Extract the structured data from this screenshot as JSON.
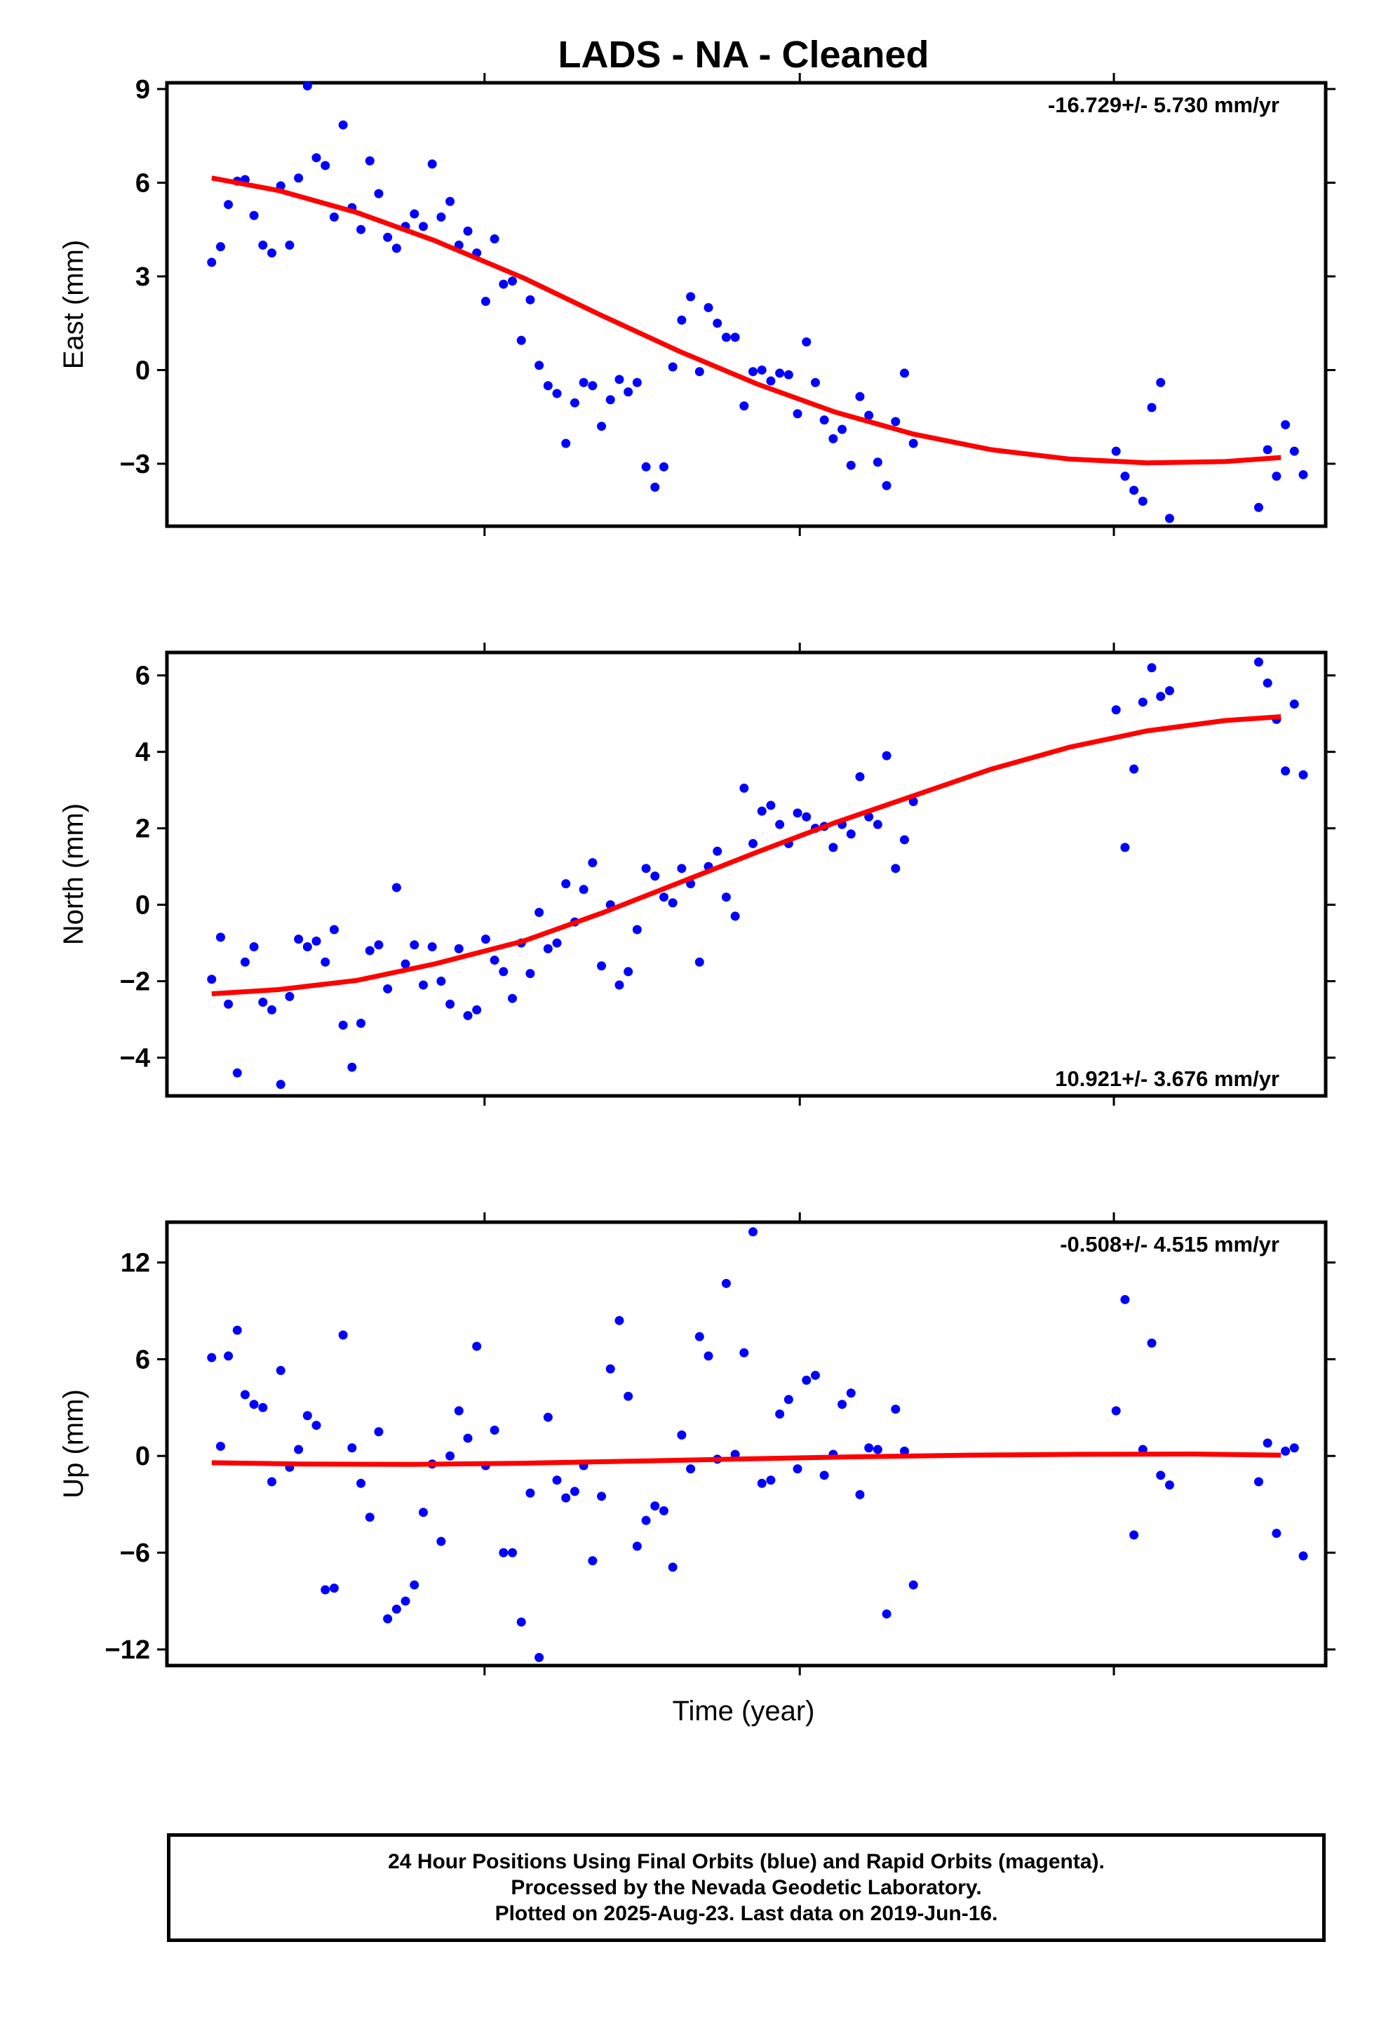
{
  "title": "LADS  - NA - Cleaned",
  "xlabel": "Time (year)",
  "colors": {
    "points": "#0000ff",
    "fit": "#ff0000",
    "frame": "#000000"
  },
  "footer": {
    "line1": "24 Hour Positions Using Final Orbits (blue) and Rapid Orbits (magenta).",
    "line2": "Processed by the Nevada Geodetic Laboratory.",
    "line3": "Plotted on 2025-Aug-23. Last data on 2019-Jun-16."
  },
  "chart_data": [
    {
      "type": "scatter",
      "id": "east",
      "ylabel": "East (mm)",
      "rate": "-16.729+/- 5.730 mm/yr",
      "rate_position": "top-right",
      "ylim": [
        -5.0,
        9.2
      ],
      "yticks": [
        9,
        6,
        3,
        0,
        -3
      ],
      "ytick_labels": [
        "9",
        "6",
        "3",
        "0",
        "−3"
      ],
      "xlim": [
        0,
        1
      ],
      "xticks": [
        0.265,
        0.548,
        0.83
      ],
      "fit": [
        [
          0.02,
          6.15
        ],
        [
          0.08,
          5.75
        ],
        [
          0.15,
          5.05
        ],
        [
          0.22,
          4.15
        ],
        [
          0.3,
          2.95
        ],
        [
          0.37,
          1.75
        ],
        [
          0.44,
          0.6
        ],
        [
          0.51,
          -0.45
        ],
        [
          0.58,
          -1.35
        ],
        [
          0.65,
          -2.05
        ],
        [
          0.72,
          -2.55
        ],
        [
          0.79,
          -2.85
        ],
        [
          0.86,
          -2.97
        ],
        [
          0.93,
          -2.93
        ],
        [
          0.98,
          -2.8
        ]
      ],
      "points": [
        [
          0.02,
          3.45
        ],
        [
          0.028,
          3.95
        ],
        [
          0.035,
          5.3
        ],
        [
          0.043,
          6.05
        ],
        [
          0.05,
          6.1
        ],
        [
          0.058,
          4.95
        ],
        [
          0.066,
          4.0
        ],
        [
          0.074,
          3.75
        ],
        [
          0.082,
          5.9
        ],
        [
          0.09,
          4.0
        ],
        [
          0.098,
          6.15
        ],
        [
          0.106,
          9.1
        ],
        [
          0.114,
          6.8
        ],
        [
          0.122,
          6.55
        ],
        [
          0.13,
          4.9
        ],
        [
          0.138,
          7.85
        ],
        [
          0.146,
          5.2
        ],
        [
          0.154,
          4.5
        ],
        [
          0.162,
          6.7
        ],
        [
          0.17,
          5.65
        ],
        [
          0.178,
          4.25
        ],
        [
          0.186,
          3.9
        ],
        [
          0.194,
          4.6
        ],
        [
          0.202,
          5.0
        ],
        [
          0.21,
          4.6
        ],
        [
          0.218,
          6.6
        ],
        [
          0.226,
          4.9
        ],
        [
          0.234,
          5.4
        ],
        [
          0.242,
          4.0
        ],
        [
          0.25,
          4.45
        ],
        [
          0.258,
          3.75
        ],
        [
          0.266,
          2.2
        ],
        [
          0.274,
          4.2
        ],
        [
          0.282,
          2.75
        ],
        [
          0.29,
          2.85
        ],
        [
          0.298,
          0.95
        ],
        [
          0.306,
          2.25
        ],
        [
          0.314,
          0.15
        ],
        [
          0.322,
          -0.5
        ],
        [
          0.33,
          -0.75
        ],
        [
          0.338,
          -2.35
        ],
        [
          0.346,
          -1.05
        ],
        [
          0.354,
          -0.4
        ],
        [
          0.362,
          -0.5
        ],
        [
          0.37,
          -1.8
        ],
        [
          0.378,
          -0.95
        ],
        [
          0.386,
          -0.3
        ],
        [
          0.394,
          -0.7
        ],
        [
          0.402,
          -0.4
        ],
        [
          0.41,
          -3.1
        ],
        [
          0.418,
          -3.75
        ],
        [
          0.426,
          -3.1
        ],
        [
          0.434,
          0.1
        ],
        [
          0.442,
          1.6
        ],
        [
          0.45,
          2.35
        ],
        [
          0.458,
          -0.05
        ],
        [
          0.466,
          2.0
        ],
        [
          0.474,
          1.5
        ],
        [
          0.482,
          1.05
        ],
        [
          0.49,
          1.05
        ],
        [
          0.498,
          -1.15
        ],
        [
          0.506,
          -0.05
        ],
        [
          0.514,
          0.0
        ],
        [
          0.522,
          -0.35
        ],
        [
          0.53,
          -0.1
        ],
        [
          0.538,
          -0.15
        ],
        [
          0.546,
          -1.4
        ],
        [
          0.554,
          0.9
        ],
        [
          0.562,
          -0.4
        ],
        [
          0.57,
          -1.6
        ],
        [
          0.578,
          -2.2
        ],
        [
          0.586,
          -1.9
        ],
        [
          0.594,
          -3.05
        ],
        [
          0.602,
          -0.85
        ],
        [
          0.61,
          -1.45
        ],
        [
          0.618,
          -2.95
        ],
        [
          0.626,
          -3.7
        ],
        [
          0.634,
          -1.65
        ],
        [
          0.642,
          -0.1
        ],
        [
          0.65,
          -2.35
        ],
        [
          0.832,
          -2.6
        ],
        [
          0.84,
          -3.4
        ],
        [
          0.848,
          -3.85
        ],
        [
          0.856,
          -4.2
        ],
        [
          0.864,
          -1.2
        ],
        [
          0.872,
          -0.4
        ],
        [
          0.88,
          -4.75
        ],
        [
          0.96,
          -4.4
        ],
        [
          0.968,
          -2.55
        ],
        [
          0.976,
          -3.4
        ],
        [
          0.984,
          -1.75
        ],
        [
          0.992,
          -2.6
        ],
        [
          1.0,
          -3.35
        ]
      ]
    },
    {
      "type": "scatter",
      "id": "north",
      "ylabel": "North (mm)",
      "rate": "10.921+/- 3.676 mm/yr",
      "rate_position": "bottom-right",
      "ylim": [
        -5.0,
        6.6
      ],
      "yticks": [
        6,
        4,
        2,
        0,
        -2,
        -4
      ],
      "ytick_labels": [
        "6",
        "4",
        "2",
        "0",
        "−2",
        "−4"
      ],
      "xlim": [
        0,
        1
      ],
      "xticks": [
        0.265,
        0.548,
        0.83
      ],
      "fit": [
        [
          0.02,
          -2.33
        ],
        [
          0.08,
          -2.22
        ],
        [
          0.15,
          -1.98
        ],
        [
          0.22,
          -1.55
        ],
        [
          0.3,
          -0.95
        ],
        [
          0.37,
          -0.22
        ],
        [
          0.44,
          0.58
        ],
        [
          0.51,
          1.38
        ],
        [
          0.58,
          2.15
        ],
        [
          0.65,
          2.85
        ],
        [
          0.72,
          3.55
        ],
        [
          0.79,
          4.12
        ],
        [
          0.86,
          4.55
        ],
        [
          0.93,
          4.82
        ],
        [
          0.98,
          4.92
        ]
      ],
      "points": [
        [
          0.02,
          -1.95
        ],
        [
          0.028,
          -0.85
        ],
        [
          0.035,
          -2.6
        ],
        [
          0.043,
          -4.4
        ],
        [
          0.05,
          -1.5
        ],
        [
          0.058,
          -1.1
        ],
        [
          0.066,
          -2.55
        ],
        [
          0.074,
          -2.75
        ],
        [
          0.082,
          -4.7
        ],
        [
          0.09,
          -2.4
        ],
        [
          0.098,
          -0.9
        ],
        [
          0.106,
          -1.1
        ],
        [
          0.114,
          -0.95
        ],
        [
          0.122,
          -1.5
        ],
        [
          0.13,
          -0.65
        ],
        [
          0.138,
          -3.15
        ],
        [
          0.146,
          -4.25
        ],
        [
          0.154,
          -3.1
        ],
        [
          0.162,
          -1.2
        ],
        [
          0.17,
          -1.05
        ],
        [
          0.178,
          -2.2
        ],
        [
          0.186,
          0.45
        ],
        [
          0.194,
          -1.55
        ],
        [
          0.202,
          -1.05
        ],
        [
          0.21,
          -2.1
        ],
        [
          0.218,
          -1.1
        ],
        [
          0.226,
          -2.0
        ],
        [
          0.234,
          -2.6
        ],
        [
          0.242,
          -1.15
        ],
        [
          0.25,
          -2.9
        ],
        [
          0.258,
          -2.75
        ],
        [
          0.266,
          -0.9
        ],
        [
          0.274,
          -1.45
        ],
        [
          0.282,
          -1.75
        ],
        [
          0.29,
          -2.45
        ],
        [
          0.298,
          -1.0
        ],
        [
          0.306,
          -1.8
        ],
        [
          0.314,
          -0.2
        ],
        [
          0.322,
          -1.15
        ],
        [
          0.33,
          -1.0
        ],
        [
          0.338,
          0.55
        ],
        [
          0.346,
          -0.45
        ],
        [
          0.354,
          0.4
        ],
        [
          0.362,
          1.1
        ],
        [
          0.37,
          -1.6
        ],
        [
          0.378,
          0.0
        ],
        [
          0.386,
          -2.1
        ],
        [
          0.394,
          -1.75
        ],
        [
          0.402,
          -0.65
        ],
        [
          0.41,
          0.95
        ],
        [
          0.418,
          0.75
        ],
        [
          0.426,
          0.2
        ],
        [
          0.434,
          0.05
        ],
        [
          0.442,
          0.95
        ],
        [
          0.45,
          0.55
        ],
        [
          0.458,
          -1.5
        ],
        [
          0.466,
          1.0
        ],
        [
          0.474,
          1.4
        ],
        [
          0.482,
          0.2
        ],
        [
          0.49,
          -0.3
        ],
        [
          0.498,
          3.05
        ],
        [
          0.506,
          1.6
        ],
        [
          0.514,
          2.45
        ],
        [
          0.522,
          2.6
        ],
        [
          0.53,
          2.1
        ],
        [
          0.538,
          1.6
        ],
        [
          0.546,
          2.4
        ],
        [
          0.554,
          2.3
        ],
        [
          0.562,
          2.0
        ],
        [
          0.57,
          2.05
        ],
        [
          0.578,
          1.5
        ],
        [
          0.586,
          2.1
        ],
        [
          0.594,
          1.85
        ],
        [
          0.602,
          3.35
        ],
        [
          0.61,
          2.3
        ],
        [
          0.618,
          2.1
        ],
        [
          0.626,
          3.9
        ],
        [
          0.634,
          0.95
        ],
        [
          0.642,
          1.7
        ],
        [
          0.65,
          2.7
        ],
        [
          0.832,
          5.1
        ],
        [
          0.84,
          1.5
        ],
        [
          0.848,
          3.55
        ],
        [
          0.856,
          5.3
        ],
        [
          0.864,
          6.2
        ],
        [
          0.872,
          5.45
        ],
        [
          0.88,
          5.6
        ],
        [
          0.96,
          6.35
        ],
        [
          0.968,
          5.8
        ],
        [
          0.976,
          4.85
        ],
        [
          0.984,
          3.5
        ],
        [
          0.992,
          5.25
        ],
        [
          1.0,
          3.4
        ]
      ]
    },
    {
      "type": "scatter",
      "id": "up",
      "ylabel": "Up (mm)",
      "rate": "-0.508+/- 4.515 mm/yr",
      "rate_position": "top-right",
      "ylim": [
        -13.0,
        14.5
      ],
      "yticks": [
        12,
        6,
        0,
        -6,
        -12
      ],
      "ytick_labels": [
        "12",
        "6",
        "0",
        "−6",
        "−12"
      ],
      "xlim": [
        0,
        1
      ],
      "xticks": [
        0.265,
        0.548,
        0.83
      ],
      "fit": [
        [
          0.02,
          -0.42
        ],
        [
          0.1,
          -0.5
        ],
        [
          0.2,
          -0.52
        ],
        [
          0.3,
          -0.45
        ],
        [
          0.4,
          -0.32
        ],
        [
          0.5,
          -0.18
        ],
        [
          0.6,
          -0.05
        ],
        [
          0.7,
          0.05
        ],
        [
          0.8,
          0.1
        ],
        [
          0.9,
          0.12
        ],
        [
          0.98,
          0.05
        ]
      ],
      "points": [
        [
          0.02,
          6.1
        ],
        [
          0.028,
          0.6
        ],
        [
          0.035,
          6.2
        ],
        [
          0.043,
          7.8
        ],
        [
          0.05,
          3.8
        ],
        [
          0.058,
          3.2
        ],
        [
          0.066,
          3.0
        ],
        [
          0.074,
          -1.6
        ],
        [
          0.082,
          5.3
        ],
        [
          0.09,
          -0.7
        ],
        [
          0.098,
          0.4
        ],
        [
          0.106,
          2.5
        ],
        [
          0.114,
          1.9
        ],
        [
          0.122,
          -8.3
        ],
        [
          0.13,
          -8.2
        ],
        [
          0.138,
          7.5
        ],
        [
          0.146,
          0.5
        ],
        [
          0.154,
          -1.7
        ],
        [
          0.162,
          -3.8
        ],
        [
          0.17,
          1.5
        ],
        [
          0.178,
          -10.1
        ],
        [
          0.186,
          -9.5
        ],
        [
          0.194,
          -9.0
        ],
        [
          0.202,
          -8.0
        ],
        [
          0.21,
          -3.5
        ],
        [
          0.218,
          -0.5
        ],
        [
          0.226,
          -5.3
        ],
        [
          0.234,
          0.0
        ],
        [
          0.242,
          2.8
        ],
        [
          0.25,
          1.1
        ],
        [
          0.258,
          6.8
        ],
        [
          0.266,
          -0.6
        ],
        [
          0.274,
          1.6
        ],
        [
          0.282,
          -6.0
        ],
        [
          0.29,
          -6.0
        ],
        [
          0.298,
          -10.3
        ],
        [
          0.306,
          -2.3
        ],
        [
          0.314,
          -12.5
        ],
        [
          0.322,
          2.4
        ],
        [
          0.33,
          -1.5
        ],
        [
          0.338,
          -2.6
        ],
        [
          0.346,
          -2.2
        ],
        [
          0.354,
          -0.6
        ],
        [
          0.362,
          -6.5
        ],
        [
          0.37,
          -2.5
        ],
        [
          0.378,
          5.4
        ],
        [
          0.386,
          8.4
        ],
        [
          0.394,
          3.7
        ],
        [
          0.402,
          -5.6
        ],
        [
          0.41,
          -4.0
        ],
        [
          0.418,
          -3.1
        ],
        [
          0.426,
          -3.4
        ],
        [
          0.434,
          -6.9
        ],
        [
          0.442,
          1.3
        ],
        [
          0.45,
          -0.8
        ],
        [
          0.458,
          7.4
        ],
        [
          0.466,
          6.2
        ],
        [
          0.474,
          -0.2
        ],
        [
          0.482,
          10.7
        ],
        [
          0.49,
          0.1
        ],
        [
          0.498,
          6.4
        ],
        [
          0.506,
          13.9
        ],
        [
          0.514,
          -1.7
        ],
        [
          0.522,
          -1.5
        ],
        [
          0.53,
          2.6
        ],
        [
          0.538,
          3.5
        ],
        [
          0.546,
          -0.8
        ],
        [
          0.554,
          4.7
        ],
        [
          0.562,
          5.0
        ],
        [
          0.57,
          -1.2
        ],
        [
          0.578,
          0.1
        ],
        [
          0.586,
          3.2
        ],
        [
          0.594,
          3.9
        ],
        [
          0.602,
          -2.4
        ],
        [
          0.61,
          0.5
        ],
        [
          0.618,
          0.4
        ],
        [
          0.626,
          -9.8
        ],
        [
          0.634,
          2.9
        ],
        [
          0.642,
          0.3
        ],
        [
          0.65,
          -8.0
        ],
        [
          0.832,
          2.8
        ],
        [
          0.84,
          9.7
        ],
        [
          0.848,
          -4.9
        ],
        [
          0.856,
          0.4
        ],
        [
          0.864,
          7.0
        ],
        [
          0.872,
          -1.2
        ],
        [
          0.88,
          -1.8
        ],
        [
          0.96,
          -1.6
        ],
        [
          0.968,
          0.8
        ],
        [
          0.976,
          -4.8
        ],
        [
          0.984,
          0.3
        ],
        [
          0.992,
          0.5
        ],
        [
          1.0,
          -6.2
        ]
      ]
    }
  ]
}
